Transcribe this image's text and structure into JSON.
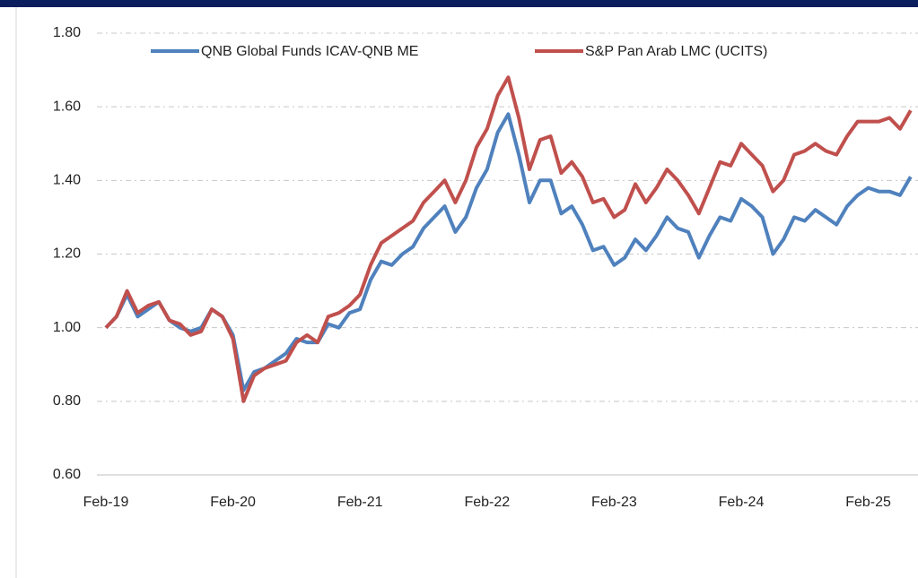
{
  "chart_data": {
    "type": "line",
    "categories": [
      "Feb-19",
      null,
      null,
      null,
      null,
      null,
      null,
      null,
      null,
      null,
      null,
      null,
      "Feb-20",
      null,
      null,
      null,
      null,
      null,
      null,
      null,
      null,
      null,
      null,
      null,
      "Feb-21",
      null,
      null,
      null,
      null,
      null,
      null,
      null,
      null,
      null,
      null,
      null,
      "Feb-22",
      null,
      null,
      null,
      null,
      null,
      null,
      null,
      null,
      null,
      null,
      null,
      "Feb-23",
      null,
      null,
      null,
      null,
      null,
      null,
      null,
      null,
      null,
      null,
      null,
      "Feb-24",
      null,
      null,
      null,
      null,
      null,
      null,
      null,
      null,
      null,
      null,
      null,
      "Feb-25",
      null,
      null,
      null,
      null
    ],
    "series": [
      {
        "name": "QNB Global Funds ICAV-QNB ME",
        "color": "#4f81bd",
        "values": [
          1.0,
          1.03,
          1.09,
          1.03,
          1.05,
          1.07,
          1.02,
          1.0,
          0.99,
          1.0,
          1.05,
          1.03,
          0.98,
          0.83,
          0.88,
          0.89,
          0.91,
          0.93,
          0.97,
          0.96,
          0.96,
          1.01,
          1.0,
          1.04,
          1.05,
          1.13,
          1.18,
          1.17,
          1.2,
          1.22,
          1.27,
          1.3,
          1.33,
          1.26,
          1.3,
          1.38,
          1.43,
          1.53,
          1.58,
          1.47,
          1.34,
          1.4,
          1.4,
          1.31,
          1.33,
          1.28,
          1.21,
          1.22,
          1.17,
          1.19,
          1.24,
          1.21,
          1.25,
          1.3,
          1.27,
          1.26,
          1.19,
          1.25,
          1.3,
          1.29,
          1.35,
          1.33,
          1.3,
          1.2,
          1.24,
          1.3,
          1.29,
          1.32,
          1.3,
          1.28,
          1.33,
          1.36,
          1.38,
          1.37,
          1.37,
          1.36,
          1.41
        ]
      },
      {
        "name": "S&P Pan Arab LMC (UCITS)",
        "color": "#c0504d",
        "values": [
          1.0,
          1.03,
          1.1,
          1.04,
          1.06,
          1.07,
          1.02,
          1.01,
          0.98,
          0.99,
          1.05,
          1.03,
          0.97,
          0.8,
          0.87,
          0.89,
          0.9,
          0.91,
          0.96,
          0.98,
          0.96,
          1.03,
          1.04,
          1.06,
          1.09,
          1.17,
          1.23,
          1.25,
          1.27,
          1.29,
          1.34,
          1.37,
          1.4,
          1.34,
          1.4,
          1.49,
          1.54,
          1.63,
          1.68,
          1.57,
          1.43,
          1.51,
          1.52,
          1.42,
          1.45,
          1.41,
          1.34,
          1.35,
          1.3,
          1.32,
          1.39,
          1.34,
          1.38,
          1.43,
          1.4,
          1.36,
          1.31,
          1.38,
          1.45,
          1.44,
          1.5,
          1.47,
          1.44,
          1.37,
          1.4,
          1.47,
          1.48,
          1.5,
          1.48,
          1.47,
          1.52,
          1.56,
          1.56,
          1.56,
          1.57,
          1.54,
          1.59
        ]
      }
    ],
    "ylim": [
      0.6,
      1.8
    ],
    "yticks": [
      {
        "value": 0.6,
        "label": "0.60"
      },
      {
        "value": 0.8,
        "label": "0.80"
      },
      {
        "value": 1.0,
        "label": "1.00"
      },
      {
        "value": 1.2,
        "label": "1.20"
      },
      {
        "value": 1.4,
        "label": "1.40"
      },
      {
        "value": 1.6,
        "label": "1.60"
      },
      {
        "value": 1.8,
        "label": "1.80"
      }
    ],
    "grid": true,
    "legend": "top"
  }
}
